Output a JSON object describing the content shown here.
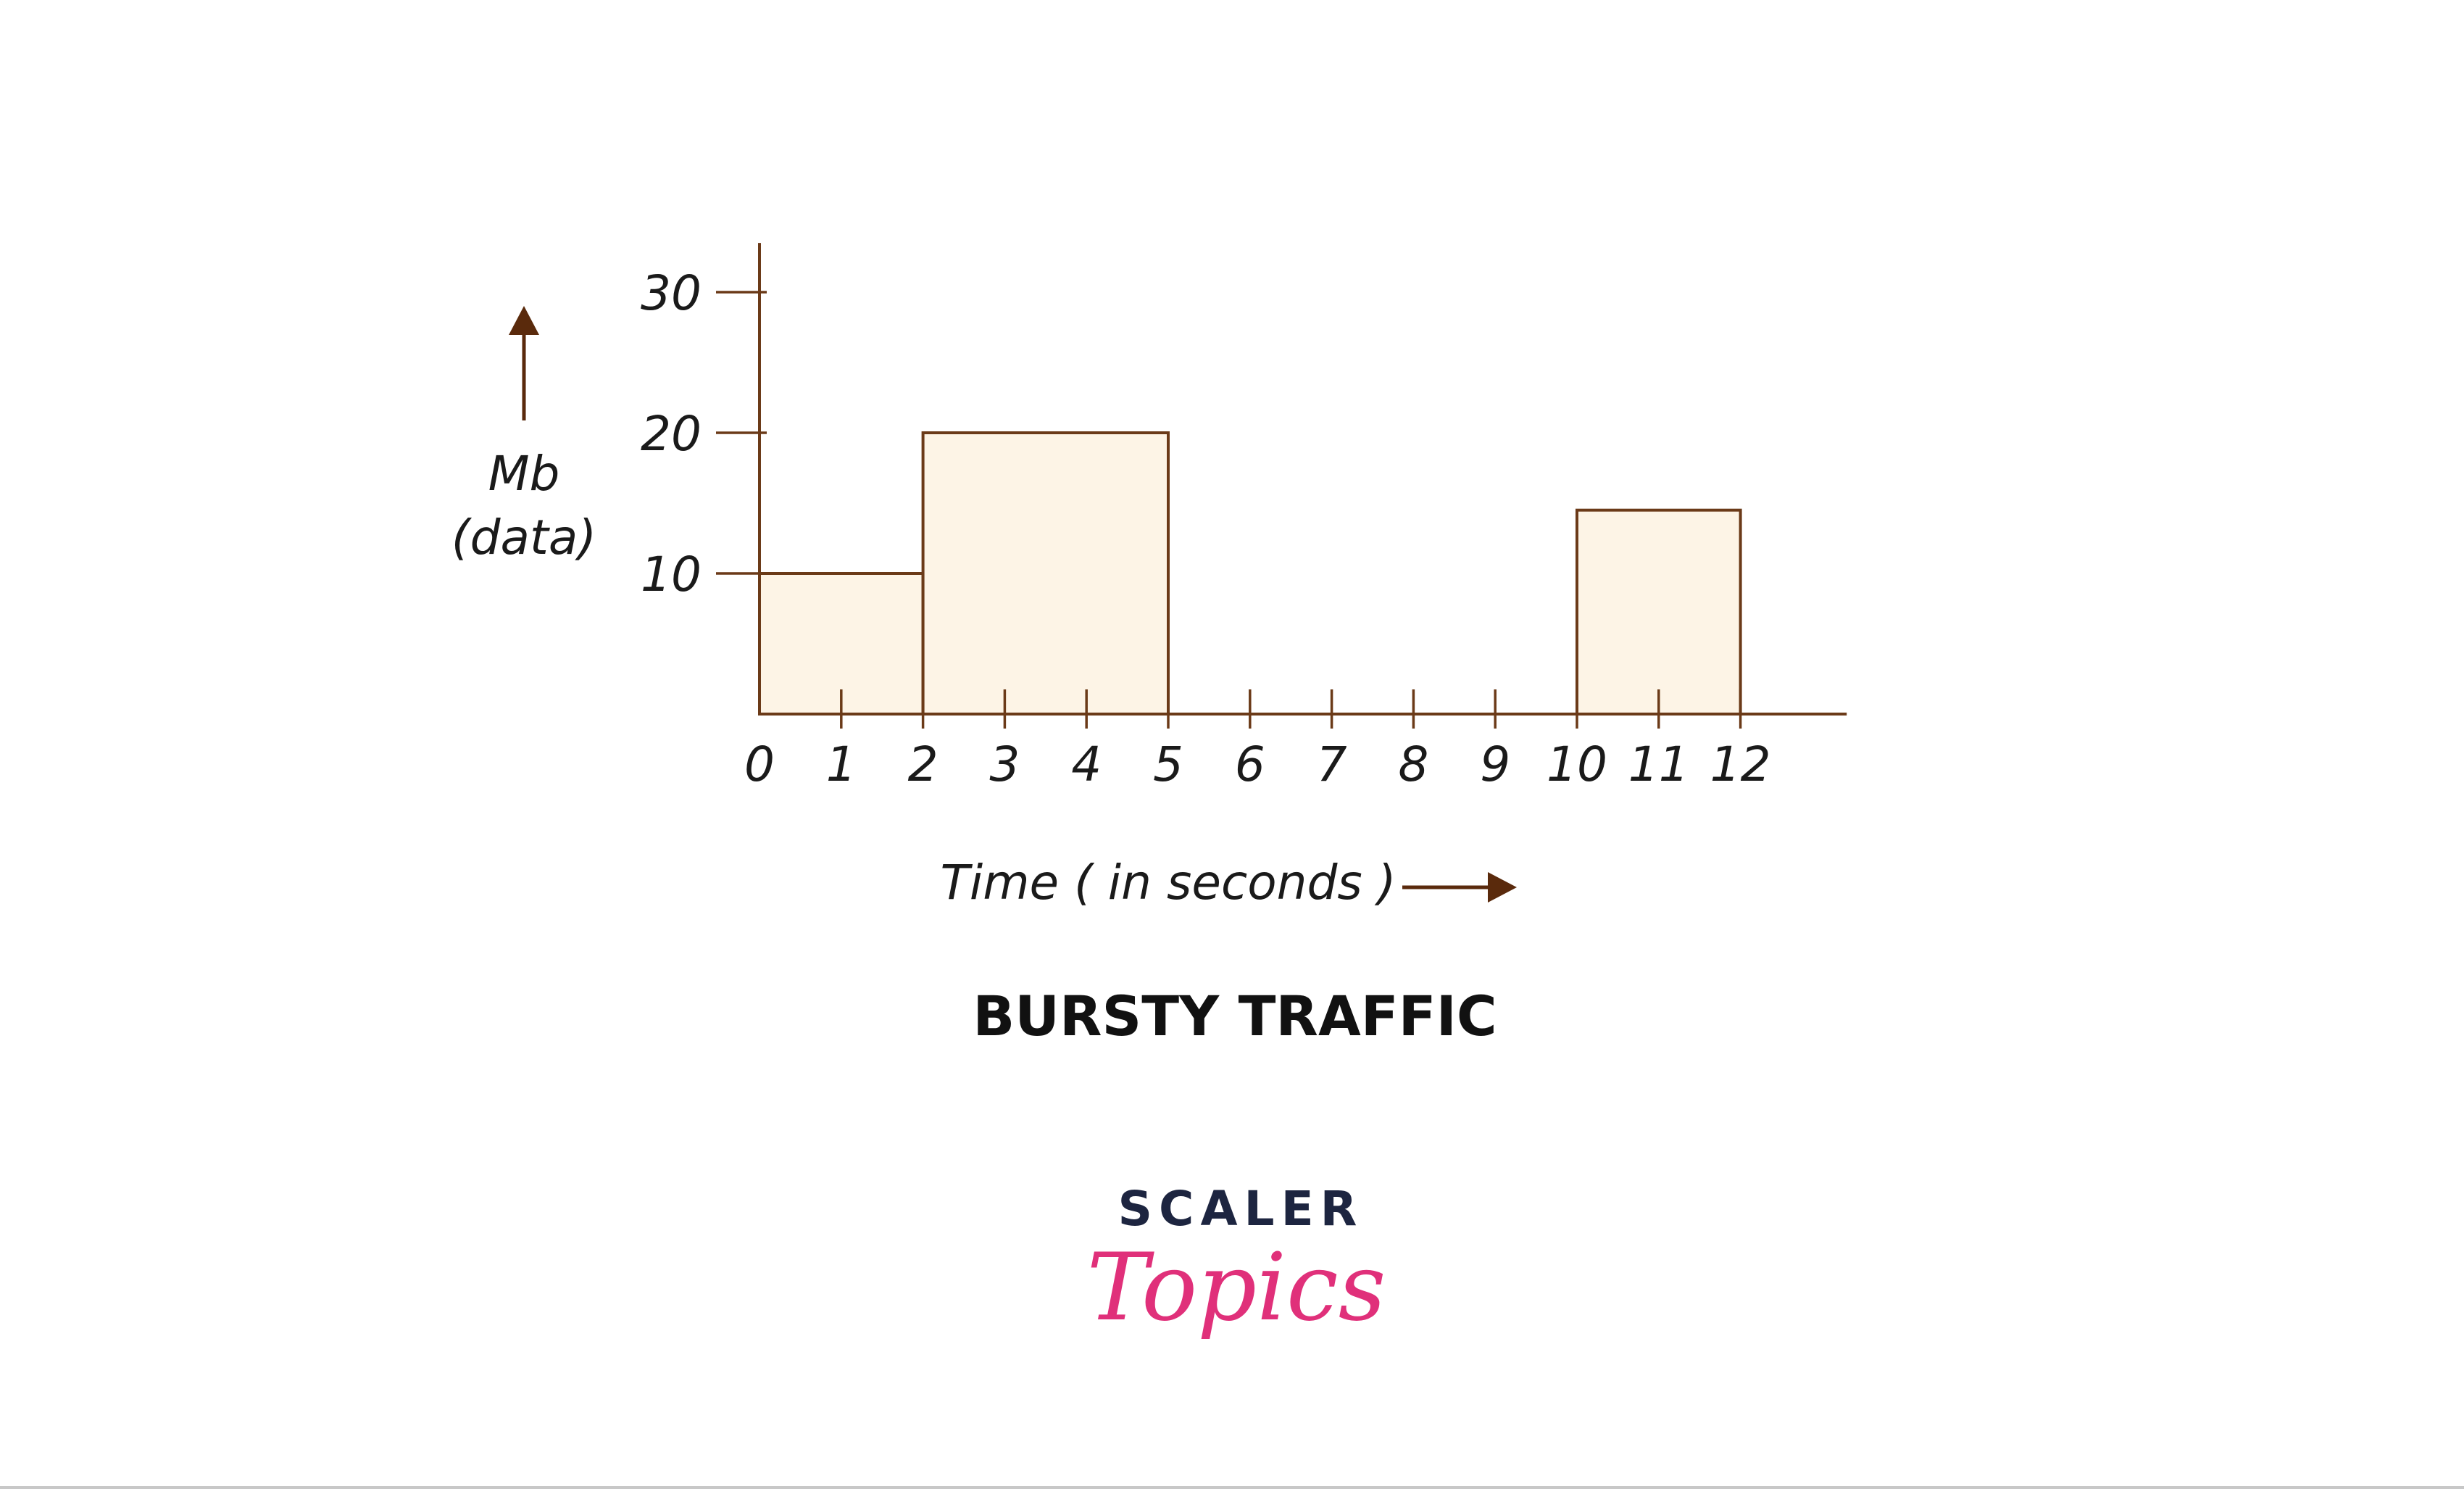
{
  "chart_data": {
    "type": "bar",
    "title": "BURSTY TRAFFIC",
    "xlabel": "Time ( in seconds )",
    "ylabel_line1": "Mb",
    "ylabel_line2": "(data)",
    "x_ticks": [
      "0",
      "1",
      "2",
      "3",
      "4",
      "5",
      "6",
      "7",
      "8",
      "9",
      "10",
      "11",
      "12"
    ],
    "y_ticks": [
      "10",
      "20",
      "30"
    ],
    "xlim": [
      0,
      13.3
    ],
    "ylim": [
      0,
      33.5
    ],
    "bars": [
      {
        "x_start": 0,
        "x_end": 2,
        "value": 10
      },
      {
        "x_start": 2,
        "x_end": 5,
        "value": 20
      },
      {
        "x_start": 10,
        "x_end": 12,
        "value": 14.5
      }
    ],
    "colors": {
      "axis": "#6b3a18",
      "bar_fill": "#fdf4e6",
      "bar_stroke": "#6b3a18",
      "arrow": "#5a2a0c"
    }
  },
  "logo": {
    "line1": "SCALER",
    "line2": "Topics",
    "line1_color": "#1d2540",
    "line2_color": "#e0307a"
  }
}
